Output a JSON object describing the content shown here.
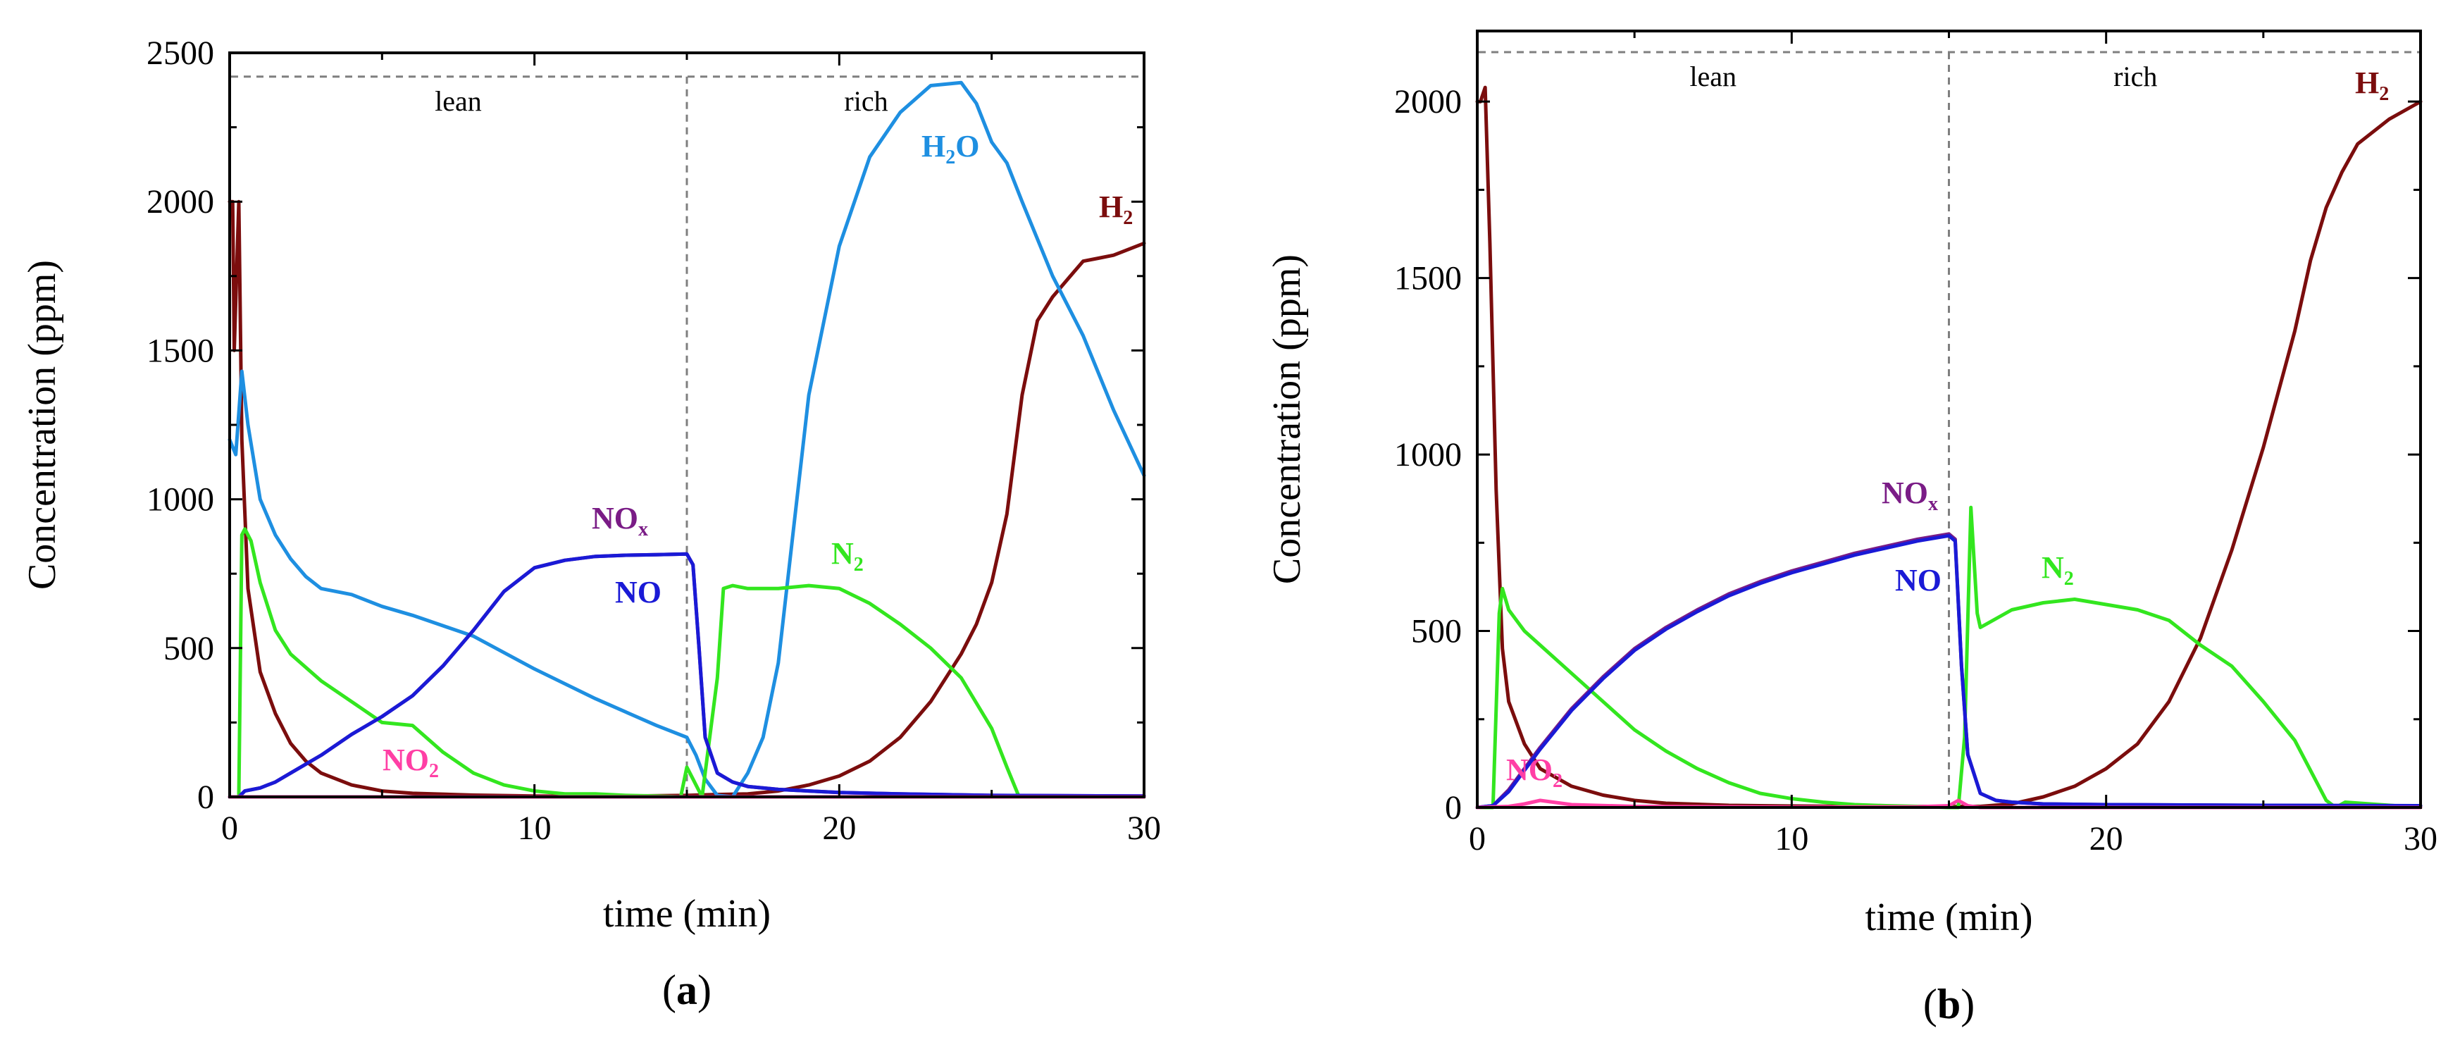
{
  "colors": {
    "H2": "#7b0d0d",
    "H2O": "#1e8fe1",
    "N2": "#33e61f",
    "NOx": "#7a1c86",
    "NO": "#1a1ad6",
    "NO2": "#ff3fa5",
    "axis": "#000000",
    "divider": "#7f7f7f"
  },
  "chart_data": [
    {
      "type": "line",
      "panel": "(a)",
      "panel_letter": "a",
      "xlabel": "time (min)",
      "ylabel": "Concentration (ppm)",
      "xlim": [
        0,
        30
      ],
      "ylim": [
        0,
        2500
      ],
      "xticks": [
        0,
        10,
        20,
        30
      ],
      "yticks": [
        0,
        500,
        1000,
        1500,
        2000,
        2500
      ],
      "phase_labels": [
        "lean",
        "rich"
      ],
      "phase_switch_min": 15,
      "dashed_top_ppm": 2420,
      "series": [
        {
          "name": "H2",
          "label": "H",
          "sub": "2",
          "color_key": "H2",
          "x": [
            0,
            0.1,
            0.15,
            0.3,
            0.4,
            0.6,
            1,
            1.5,
            2,
            2.5,
            3,
            4,
            5,
            6,
            8,
            10,
            12,
            15,
            16,
            17,
            18,
            19,
            20,
            21,
            22,
            23,
            24,
            24.5,
            25,
            25.5,
            26,
            26.5,
            27,
            27.5,
            28,
            28.5,
            29,
            30
          ],
          "y": [
            2000,
            2000,
            1500,
            2000,
            1200,
            700,
            420,
            280,
            180,
            120,
            80,
            40,
            20,
            12,
            6,
            3,
            2,
            5,
            8,
            10,
            20,
            40,
            70,
            120,
            200,
            320,
            480,
            580,
            720,
            950,
            1350,
            1600,
            1680,
            1740,
            1800,
            1810,
            1820,
            1860
          ]
        },
        {
          "name": "H2O",
          "label": "H",
          "sub": "2",
          "suffix": "O",
          "color_key": "H2O",
          "x": [
            0,
            0.2,
            0.4,
            0.6,
            1,
            1.5,
            2,
            2.5,
            3,
            4,
            5,
            6,
            8,
            10,
            12,
            14,
            15,
            15.3,
            15.6,
            16,
            16.5,
            17,
            17.5,
            18,
            18.5,
            19,
            20,
            21,
            22,
            23,
            24,
            24.5,
            25,
            25.5,
            26,
            27,
            28,
            29,
            30
          ],
          "y": [
            1200,
            1150,
            1430,
            1250,
            1000,
            880,
            800,
            740,
            700,
            680,
            640,
            610,
            540,
            430,
            330,
            240,
            200,
            140,
            60,
            5,
            0,
            80,
            200,
            450,
            900,
            1350,
            1850,
            2150,
            2300,
            2390,
            2400,
            2330,
            2200,
            2130,
            2000,
            1750,
            1550,
            1300,
            1080
          ]
        },
        {
          "name": "N2",
          "label": "N",
          "sub": "2",
          "color_key": "N2",
          "x": [
            0,
            0.3,
            0.4,
            0.5,
            0.7,
            1,
            1.5,
            2,
            3,
            4,
            5,
            6,
            7,
            8,
            9,
            10,
            11,
            12,
            13,
            14,
            14.8,
            15,
            15.2,
            15.5,
            16,
            16.2,
            16.5,
            17,
            18,
            19,
            20,
            21,
            22,
            23,
            24,
            25,
            25.5,
            25.9,
            26,
            30
          ],
          "y": [
            0,
            0,
            880,
            900,
            860,
            720,
            560,
            480,
            390,
            320,
            250,
            240,
            150,
            80,
            40,
            20,
            10,
            10,
            5,
            3,
            0,
            100,
            60,
            0,
            400,
            700,
            710,
            700,
            700,
            710,
            700,
            650,
            580,
            500,
            400,
            230,
            100,
            0,
            0,
            0
          ]
        },
        {
          "name": "NOx",
          "label": "NO",
          "sub": "x",
          "color_key": "NOx",
          "x": [
            0,
            0.3,
            0.5,
            1,
            1.5,
            2,
            3,
            4,
            5,
            6,
            7,
            8,
            9,
            10,
            11,
            12,
            13,
            14,
            15,
            15.2,
            15.4,
            15.6,
            16,
            16.5,
            17,
            18,
            19,
            20,
            22,
            25,
            30
          ],
          "y": [
            0,
            0,
            20,
            30,
            50,
            80,
            140,
            210,
            270,
            340,
            440,
            560,
            690,
            770,
            795,
            808,
            812,
            814,
            816,
            780,
            500,
            200,
            80,
            50,
            35,
            25,
            20,
            15,
            10,
            5,
            3
          ]
        },
        {
          "name": "NO",
          "label": "NO",
          "sub": "",
          "color_key": "NO",
          "x": [
            0,
            0.3,
            0.5,
            1,
            1.5,
            2,
            3,
            4,
            5,
            6,
            7,
            8,
            9,
            10,
            11,
            12,
            13,
            14,
            15,
            15.2,
            15.4,
            15.6,
            16,
            16.5,
            17,
            18,
            19,
            20,
            22,
            25,
            30
          ],
          "y": [
            0,
            0,
            20,
            30,
            50,
            80,
            140,
            210,
            270,
            340,
            440,
            560,
            690,
            770,
            795,
            808,
            812,
            814,
            816,
            780,
            500,
            200,
            80,
            50,
            35,
            25,
            20,
            15,
            10,
            5,
            3
          ]
        },
        {
          "name": "NO2",
          "label": "NO",
          "sub": "2",
          "color_key": "NO2",
          "x": [
            0,
            30
          ],
          "y": [
            0,
            0
          ]
        }
      ]
    },
    {
      "type": "line",
      "panel": "(b)",
      "panel_letter": "b",
      "xlabel": "time (min)",
      "ylabel": "Concentration (ppm)",
      "xlim": [
        0,
        30
      ],
      "ylim": [
        0,
        2200
      ],
      "xticks": [
        0,
        10,
        20,
        30
      ],
      "yticks": [
        0,
        500,
        1000,
        1500,
        2000
      ],
      "phase_labels": [
        "lean",
        "rich"
      ],
      "phase_switch_min": 15,
      "dashed_top_ppm": 2140,
      "series": [
        {
          "name": "H2",
          "label": "H",
          "sub": "2",
          "color_key": "H2",
          "x": [
            0,
            0.1,
            0.25,
            0.4,
            0.6,
            0.8,
            1,
            1.5,
            2,
            3,
            4,
            5,
            6,
            8,
            10,
            12,
            14,
            15,
            16,
            17,
            18,
            19,
            20,
            21,
            22,
            23,
            24,
            25,
            26,
            26.5,
            27,
            27.5,
            28,
            29,
            30
          ],
          "y": [
            2000,
            2000,
            2040,
            1600,
            900,
            450,
            300,
            180,
            110,
            60,
            35,
            20,
            12,
            6,
            4,
            3,
            3,
            3,
            3,
            10,
            30,
            60,
            110,
            180,
            300,
            480,
            730,
            1020,
            1350,
            1550,
            1700,
            1800,
            1880,
            1950,
            2000
          ]
        },
        {
          "name": "N2",
          "label": "N",
          "sub": "2",
          "color_key": "N2",
          "x": [
            0,
            0.5,
            0.7,
            0.8,
            1,
            1.5,
            2,
            3,
            4,
            5,
            6,
            7,
            8,
            9,
            10,
            11,
            12,
            13,
            14,
            15,
            15.3,
            15.5,
            15.7,
            15.9,
            16,
            17,
            18,
            19,
            20,
            21,
            22,
            23,
            24,
            25,
            26,
            27,
            27.3,
            27.6,
            30
          ],
          "y": [
            0,
            0,
            550,
            620,
            560,
            500,
            460,
            380,
            300,
            220,
            160,
            110,
            70,
            40,
            25,
            15,
            8,
            5,
            3,
            0,
            0,
            200,
            850,
            550,
            510,
            560,
            580,
            590,
            575,
            560,
            530,
            460,
            400,
            300,
            190,
            20,
            0,
            15,
            0
          ]
        },
        {
          "name": "NOx",
          "label": "NO",
          "sub": "x",
          "color_key": "NOx",
          "x": [
            0,
            0.5,
            1,
            2,
            3,
            4,
            5,
            6,
            7,
            8,
            9,
            10,
            11,
            12,
            13,
            14,
            15,
            15.2,
            15.4,
            15.6,
            16,
            16.5,
            17,
            18,
            20,
            25,
            30
          ],
          "y": [
            0,
            5,
            50,
            170,
            280,
            370,
            450,
            510,
            560,
            605,
            640,
            670,
            695,
            720,
            740,
            760,
            775,
            760,
            400,
            150,
            40,
            20,
            15,
            10,
            8,
            6,
            5
          ]
        },
        {
          "name": "NO",
          "label": "NO",
          "sub": "",
          "color_key": "NO",
          "x": [
            0,
            0.5,
            1,
            2,
            3,
            4,
            5,
            6,
            7,
            8,
            9,
            10,
            11,
            12,
            13,
            14,
            15,
            15.2,
            15.4,
            15.6,
            16,
            16.5,
            17,
            18,
            20,
            25,
            30
          ],
          "y": [
            0,
            5,
            45,
            165,
            275,
            365,
            445,
            505,
            555,
            600,
            635,
            665,
            690,
            715,
            735,
            755,
            770,
            755,
            400,
            150,
            40,
            20,
            15,
            10,
            8,
            6,
            5
          ]
        },
        {
          "name": "NO2",
          "label": "NO",
          "sub": "2",
          "color_key": "NO2",
          "x": [
            0,
            1,
            1.5,
            2,
            3,
            5,
            10,
            14,
            15,
            15.3,
            15.6,
            16,
            30
          ],
          "y": [
            0,
            3,
            10,
            20,
            8,
            3,
            1,
            2,
            5,
            20,
            5,
            0,
            0
          ]
        }
      ]
    }
  ]
}
